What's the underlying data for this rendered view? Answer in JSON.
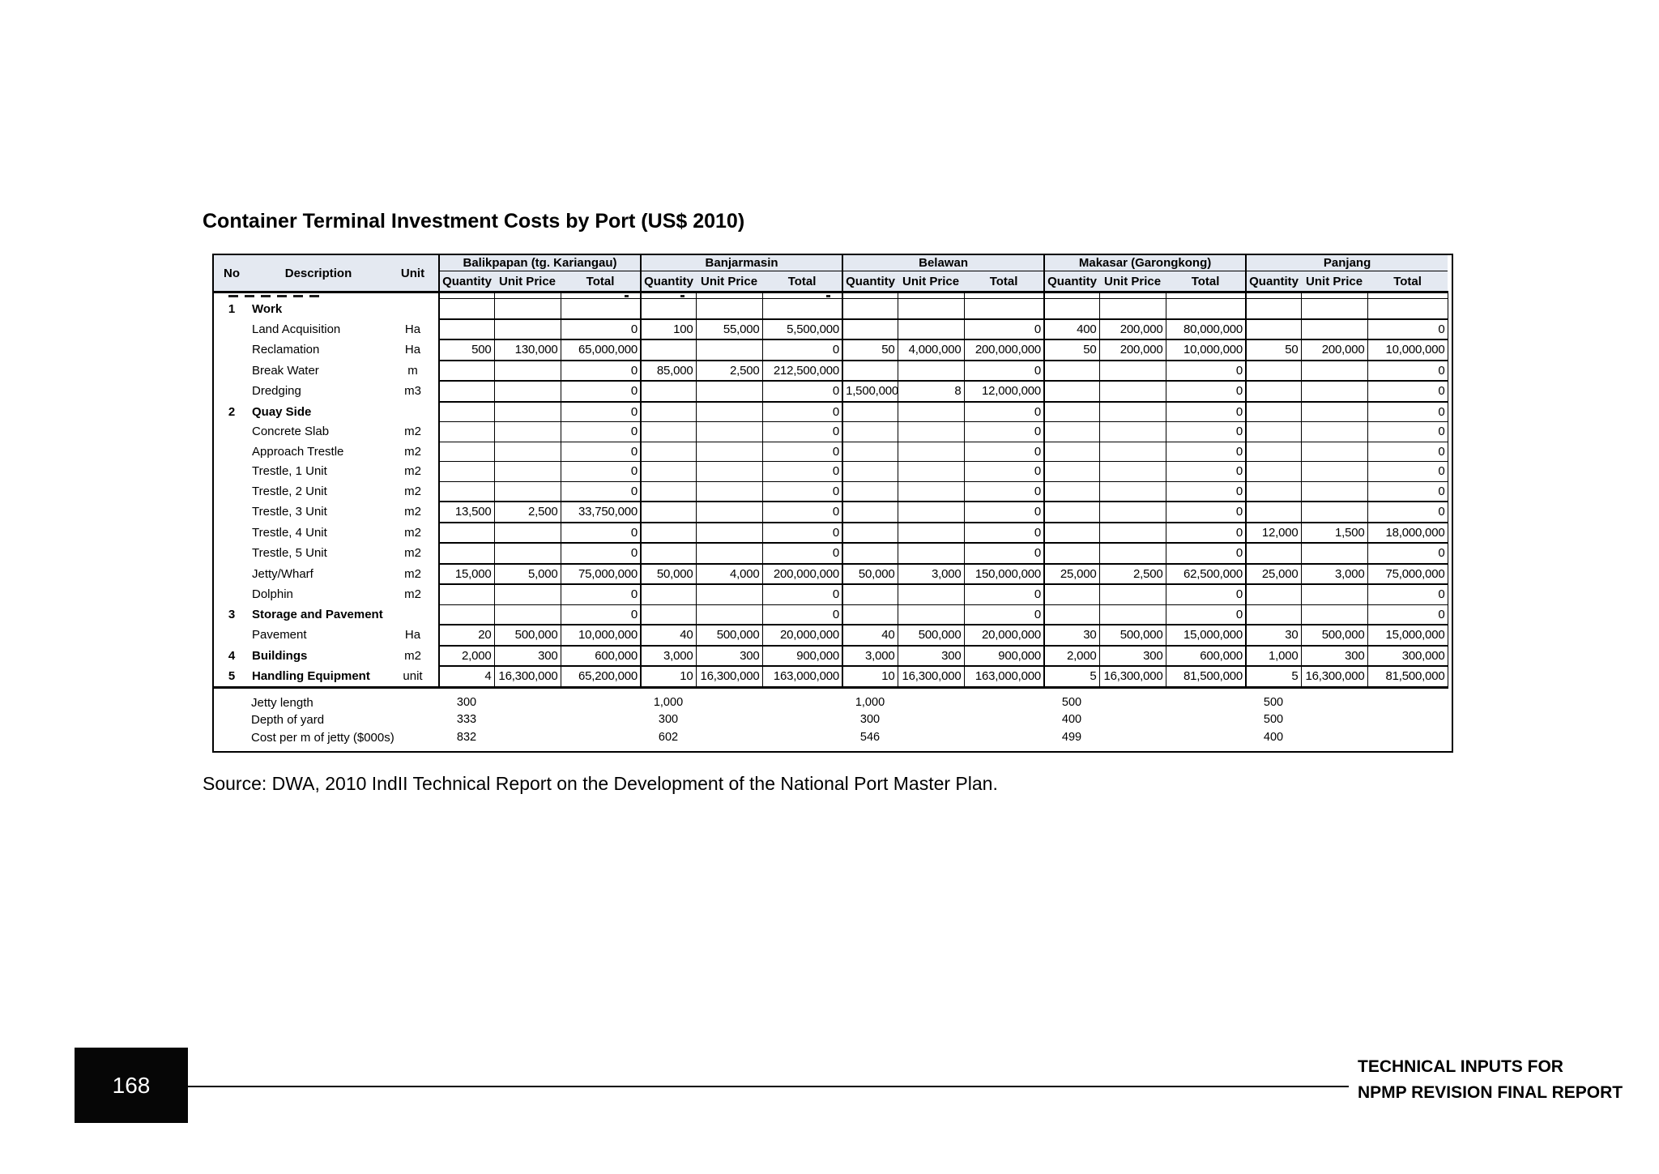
{
  "page": {
    "title": "Container Terminal Investment Costs by Port (US$ 2010)",
    "source_note": "Source: DWA, 2010 IndII Technical Report on the Development of the National Port Master Plan.",
    "page_number": "168",
    "footer_line1": "TECHNICAL INPUTS FOR",
    "footer_line2": "NPMP REVISION FINAL REPORT"
  },
  "table": {
    "colors": {
      "header_bg": "#e4e9f1",
      "border": "#000000",
      "page_bg": "#ffffff",
      "footer_box_bg": "#060606"
    },
    "left_headers": [
      "No",
      "Description",
      "Unit"
    ],
    "ports": [
      "Balikpapan (tg. Kariangau)",
      "Banjarmasin",
      "Belawan",
      "Makasar (Garongkong)",
      "Panjang"
    ],
    "sub_headers": [
      "Quantity",
      "Unit Price",
      "Total"
    ],
    "rows": [
      {
        "no": "1",
        "desc": "Work",
        "unit": "",
        "bold": true,
        "cells": [
          [
            "",
            "",
            ""
          ],
          [
            "",
            "",
            ""
          ],
          [
            "",
            "",
            ""
          ],
          [
            "",
            "",
            ""
          ],
          [
            "",
            "",
            ""
          ]
        ]
      },
      {
        "no": "",
        "desc": "Land Acquisition",
        "unit": "Ha",
        "bold": false,
        "cells": [
          [
            "",
            "",
            "0"
          ],
          [
            "100",
            "55,000",
            "5,500,000"
          ],
          [
            "",
            "",
            "0"
          ],
          [
            "400",
            "200,000",
            "80,000,000"
          ],
          [
            "",
            "",
            "0"
          ]
        ]
      },
      {
        "no": "",
        "desc": "Reclamation",
        "unit": "Ha",
        "bold": false,
        "cells": [
          [
            "500",
            "130,000",
            "65,000,000"
          ],
          [
            "",
            "",
            "0"
          ],
          [
            "50",
            "4,000,000",
            "200,000,000"
          ],
          [
            "50",
            "200,000",
            "10,000,000"
          ],
          [
            "50",
            "200,000",
            "10,000,000"
          ]
        ]
      },
      {
        "no": "",
        "desc": "Break Water",
        "unit": "m",
        "bold": false,
        "cells": [
          [
            "",
            "",
            "0"
          ],
          [
            "85,000",
            "2,500",
            "212,500,000"
          ],
          [
            "",
            "",
            "0"
          ],
          [
            "",
            "",
            "0"
          ],
          [
            "",
            "",
            "0"
          ]
        ]
      },
      {
        "no": "",
        "desc": "Dredging",
        "unit": "m3",
        "bold": false,
        "cells": [
          [
            "",
            "",
            "0"
          ],
          [
            "",
            "",
            "0"
          ],
          [
            "1,500,000",
            "8",
            "12,000,000"
          ],
          [
            "",
            "",
            "0"
          ],
          [
            "",
            "",
            "0"
          ]
        ]
      },
      {
        "no": "2",
        "desc": "Quay Side",
        "unit": "",
        "bold": true,
        "cells": [
          [
            "",
            "",
            "0"
          ],
          [
            "",
            "",
            "0"
          ],
          [
            "",
            "",
            "0"
          ],
          [
            "",
            "",
            "0"
          ],
          [
            "",
            "",
            "0"
          ]
        ]
      },
      {
        "no": "",
        "desc": "Concrete Slab",
        "unit": "m2",
        "bold": false,
        "cells": [
          [
            "",
            "",
            "0"
          ],
          [
            "",
            "",
            "0"
          ],
          [
            "",
            "",
            "0"
          ],
          [
            "",
            "",
            "0"
          ],
          [
            "",
            "",
            "0"
          ]
        ]
      },
      {
        "no": "",
        "desc": "Approach Trestle",
        "unit": "m2",
        "bold": false,
        "cells": [
          [
            "",
            "",
            "0"
          ],
          [
            "",
            "",
            "0"
          ],
          [
            "",
            "",
            "0"
          ],
          [
            "",
            "",
            "0"
          ],
          [
            "",
            "",
            "0"
          ]
        ]
      },
      {
        "no": "",
        "desc": "Trestle, 1 Unit",
        "unit": "m2",
        "bold": false,
        "cells": [
          [
            "",
            "",
            "0"
          ],
          [
            "",
            "",
            "0"
          ],
          [
            "",
            "",
            "0"
          ],
          [
            "",
            "",
            "0"
          ],
          [
            "",
            "",
            "0"
          ]
        ]
      },
      {
        "no": "",
        "desc": "Trestle, 2 Unit",
        "unit": "m2",
        "bold": false,
        "cells": [
          [
            "",
            "",
            "0"
          ],
          [
            "",
            "",
            "0"
          ],
          [
            "",
            "",
            "0"
          ],
          [
            "",
            "",
            "0"
          ],
          [
            "",
            "",
            "0"
          ]
        ]
      },
      {
        "no": "",
        "desc": "Trestle, 3 Unit",
        "unit": "m2",
        "bold": false,
        "cells": [
          [
            "13,500",
            "2,500",
            "33,750,000"
          ],
          [
            "",
            "",
            "0"
          ],
          [
            "",
            "",
            "0"
          ],
          [
            "",
            "",
            "0"
          ],
          [
            "",
            "",
            "0"
          ]
        ]
      },
      {
        "no": "",
        "desc": "Trestle, 4 Unit",
        "unit": "m2",
        "bold": false,
        "cells": [
          [
            "",
            "",
            "0"
          ],
          [
            "",
            "",
            "0"
          ],
          [
            "",
            "",
            "0"
          ],
          [
            "",
            "",
            "0"
          ],
          [
            "12,000",
            "1,500",
            "18,000,000"
          ]
        ]
      },
      {
        "no": "",
        "desc": "Trestle, 5 Unit",
        "unit": "m2",
        "bold": false,
        "cells": [
          [
            "",
            "",
            "0"
          ],
          [
            "",
            "",
            "0"
          ],
          [
            "",
            "",
            "0"
          ],
          [
            "",
            "",
            "0"
          ],
          [
            "",
            "",
            "0"
          ]
        ]
      },
      {
        "no": "",
        "desc": "Jetty/Wharf",
        "unit": "m2",
        "bold": false,
        "cells": [
          [
            "15,000",
            "5,000",
            "75,000,000"
          ],
          [
            "50,000",
            "4,000",
            "200,000,000"
          ],
          [
            "50,000",
            "3,000",
            "150,000,000"
          ],
          [
            "25,000",
            "2,500",
            "62,500,000"
          ],
          [
            "25,000",
            "3,000",
            "75,000,000"
          ]
        ]
      },
      {
        "no": "",
        "desc": "Dolphin",
        "unit": "m2",
        "bold": false,
        "cells": [
          [
            "",
            "",
            "0"
          ],
          [
            "",
            "",
            "0"
          ],
          [
            "",
            "",
            "0"
          ],
          [
            "",
            "",
            "0"
          ],
          [
            "",
            "",
            "0"
          ]
        ]
      },
      {
        "no": "3",
        "desc": "Storage and Pavement",
        "unit": "",
        "bold": true,
        "cells": [
          [
            "",
            "",
            "0"
          ],
          [
            "",
            "",
            "0"
          ],
          [
            "",
            "",
            "0"
          ],
          [
            "",
            "",
            "0"
          ],
          [
            "",
            "",
            "0"
          ]
        ]
      },
      {
        "no": "",
        "desc": "Pavement",
        "unit": "Ha",
        "bold": false,
        "cells": [
          [
            "20",
            "500,000",
            "10,000,000"
          ],
          [
            "40",
            "500,000",
            "20,000,000"
          ],
          [
            "40",
            "500,000",
            "20,000,000"
          ],
          [
            "30",
            "500,000",
            "15,000,000"
          ],
          [
            "30",
            "500,000",
            "15,000,000"
          ]
        ]
      },
      {
        "no": "4",
        "desc": "Buildings",
        "unit": "m2",
        "bold": true,
        "cells": [
          [
            "2,000",
            "300",
            "600,000"
          ],
          [
            "3,000",
            "300",
            "900,000"
          ],
          [
            "3,000",
            "300",
            "900,000"
          ],
          [
            "2,000",
            "300",
            "600,000"
          ],
          [
            "1,000",
            "300",
            "300,000"
          ]
        ]
      },
      {
        "no": "5",
        "desc": "Handling Equipment",
        "unit": "unit",
        "bold": true,
        "cells": [
          [
            "4",
            "16,300,000",
            "65,200,000"
          ],
          [
            "10",
            "16,300,000",
            "163,000,000"
          ],
          [
            "10",
            "16,300,000",
            "163,000,000"
          ],
          [
            "5",
            "16,300,000",
            "81,500,000"
          ],
          [
            "5",
            "16,300,000",
            "81,500,000"
          ]
        ]
      }
    ],
    "summary_rows": [
      {
        "label": "Jetty length",
        "values": [
          "300",
          "1,000",
          "1,000",
          "500",
          "500"
        ]
      },
      {
        "label": "Depth of yard",
        "values": [
          "333",
          "300",
          "300",
          "400",
          "500"
        ]
      },
      {
        "label": "Cost per m of jetty ($000s)",
        "values": [
          "832",
          "602",
          "546",
          "499",
          "400"
        ]
      }
    ]
  }
}
